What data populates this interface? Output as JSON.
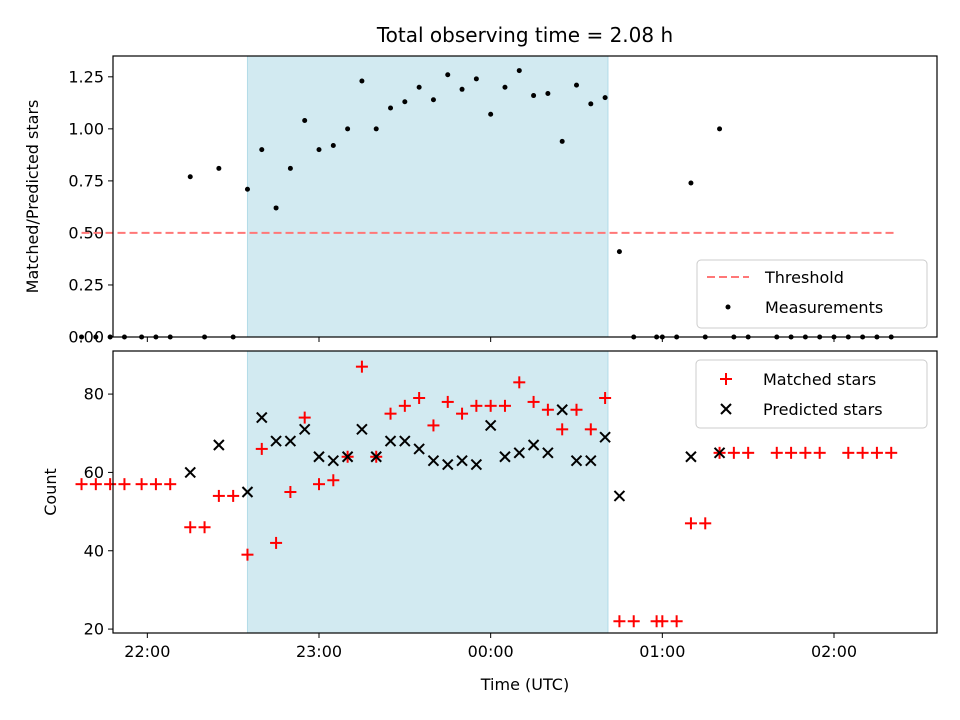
{
  "chart_data": [
    {
      "type": "scatter",
      "title": "Total observing time = 2.08 h",
      "xlabel": "",
      "ylabel": "Matched/Predicted stars",
      "xlim": [
        "21:48",
        "02:36"
      ],
      "ylim": [
        0,
        1.35
      ],
      "yticks": [
        "0.00",
        "0.25",
        "0.50",
        "0.75",
        "1.00",
        "1.25"
      ],
      "shaded_interval": {
        "start": "22:35",
        "end": "00:41",
        "color": "#add8e6"
      },
      "legend_position": "lower right",
      "threshold": {
        "name": "Threshold",
        "value": 0.5,
        "x_start": "21:37",
        "x_end": "02:21",
        "color": "#ff7777"
      },
      "series": [
        {
          "name": "Measurements",
          "color": "#000000",
          "points": [
            [
              "21:37",
              0
            ],
            [
              "21:42",
              0
            ],
            [
              "21:47",
              0
            ],
            [
              "21:52",
              0
            ],
            [
              "21:58",
              0
            ],
            [
              "22:03",
              0
            ],
            [
              "22:08",
              0
            ],
            [
              "22:15",
              0.77
            ],
            [
              "22:20",
              0
            ],
            [
              "22:25",
              0.81
            ],
            [
              "22:30",
              0
            ],
            [
              "22:35",
              0.71
            ],
            [
              "22:40",
              0.9
            ],
            [
              "22:45",
              0.62
            ],
            [
              "22:50",
              0.81
            ],
            [
              "22:55",
              1.04
            ],
            [
              "23:00",
              0.9
            ],
            [
              "23:05",
              0.92
            ],
            [
              "23:10",
              1.0
            ],
            [
              "23:15",
              1.23
            ],
            [
              "23:20",
              1.0
            ],
            [
              "23:25",
              1.1
            ],
            [
              "23:30",
              1.13
            ],
            [
              "23:35",
              1.2
            ],
            [
              "23:40",
              1.14
            ],
            [
              "23:45",
              1.26
            ],
            [
              "23:50",
              1.19
            ],
            [
              "23:55",
              1.24
            ],
            [
              "00:00",
              1.07
            ],
            [
              "00:05",
              1.2
            ],
            [
              "00:10",
              1.28
            ],
            [
              "00:15",
              1.16
            ],
            [
              "00:20",
              1.17
            ],
            [
              "00:25",
              0.94
            ],
            [
              "00:30",
              1.21
            ],
            [
              "00:35",
              1.12
            ],
            [
              "00:40",
              1.15
            ],
            [
              "00:45",
              0.41
            ],
            [
              "00:50",
              0
            ],
            [
              "00:58",
              0
            ],
            [
              "01:00",
              0
            ],
            [
              "01:05",
              0
            ],
            [
              "01:10",
              0.74
            ],
            [
              "01:15",
              0
            ],
            [
              "01:20",
              1.0
            ],
            [
              "01:25",
              0
            ],
            [
              "01:30",
              0
            ],
            [
              "01:40",
              0
            ],
            [
              "01:45",
              0
            ],
            [
              "01:50",
              0
            ],
            [
              "01:55",
              0
            ],
            [
              "02:00",
              0
            ],
            [
              "02:05",
              0
            ],
            [
              "02:10",
              0
            ],
            [
              "02:15",
              0
            ],
            [
              "02:20",
              0
            ]
          ]
        }
      ]
    },
    {
      "type": "scatter",
      "title": "",
      "xlabel": "Time (UTC)",
      "ylabel": "Count",
      "xlim": [
        "21:48",
        "02:36"
      ],
      "xticks": [
        "22:00",
        "23:00",
        "00:00",
        "01:00",
        "02:00"
      ],
      "ylim": [
        19,
        91
      ],
      "yticks": [
        "20",
        "40",
        "60",
        "80"
      ],
      "shaded_interval": {
        "start": "22:35",
        "end": "00:41",
        "color": "#add8e6"
      },
      "legend_position": "upper right",
      "series": [
        {
          "name": "Matched stars",
          "marker": "+",
          "color": "#ff0000",
          "points": [
            [
              "21:37",
              57
            ],
            [
              "21:42",
              57
            ],
            [
              "21:47",
              57
            ],
            [
              "21:52",
              57
            ],
            [
              "21:58",
              57
            ],
            [
              "22:03",
              57
            ],
            [
              "22:08",
              57
            ],
            [
              "22:15",
              46
            ],
            [
              "22:20",
              46
            ],
            [
              "22:25",
              54
            ],
            [
              "22:30",
              54
            ],
            [
              "22:35",
              39
            ],
            [
              "22:40",
              66
            ],
            [
              "22:45",
              42
            ],
            [
              "22:50",
              55
            ],
            [
              "22:55",
              74
            ],
            [
              "23:00",
              57
            ],
            [
              "23:05",
              58
            ],
            [
              "23:10",
              64
            ],
            [
              "23:15",
              87
            ],
            [
              "23:20",
              64
            ],
            [
              "23:25",
              75
            ],
            [
              "23:30",
              77
            ],
            [
              "23:35",
              79
            ],
            [
              "23:40",
              72
            ],
            [
              "23:45",
              78
            ],
            [
              "23:50",
              75
            ],
            [
              "23:55",
              77
            ],
            [
              "00:00",
              77
            ],
            [
              "00:05",
              77
            ],
            [
              "00:10",
              83
            ],
            [
              "00:15",
              78
            ],
            [
              "00:20",
              76
            ],
            [
              "00:25",
              71
            ],
            [
              "00:30",
              76
            ],
            [
              "00:35",
              71
            ],
            [
              "00:40",
              79
            ],
            [
              "00:45",
              22
            ],
            [
              "00:50",
              22
            ],
            [
              "00:58",
              22
            ],
            [
              "01:00",
              22
            ],
            [
              "01:05",
              22
            ],
            [
              "01:10",
              47
            ],
            [
              "01:15",
              47
            ],
            [
              "01:20",
              65
            ],
            [
              "01:25",
              65
            ],
            [
              "01:30",
              65
            ],
            [
              "01:40",
              65
            ],
            [
              "01:45",
              65
            ],
            [
              "01:50",
              65
            ],
            [
              "01:55",
              65
            ],
            [
              "02:05",
              65
            ],
            [
              "02:10",
              65
            ],
            [
              "02:15",
              65
            ],
            [
              "02:20",
              65
            ]
          ]
        },
        {
          "name": "Predicted stars",
          "marker": "x",
          "color": "#000000",
          "points": [
            [
              "22:15",
              60
            ],
            [
              "22:25",
              67
            ],
            [
              "22:35",
              55
            ],
            [
              "22:40",
              74
            ],
            [
              "22:45",
              68
            ],
            [
              "22:50",
              68
            ],
            [
              "22:55",
              71
            ],
            [
              "23:00",
              64
            ],
            [
              "23:05",
              63
            ],
            [
              "23:10",
              64
            ],
            [
              "23:15",
              71
            ],
            [
              "23:20",
              64
            ],
            [
              "23:25",
              68
            ],
            [
              "23:30",
              68
            ],
            [
              "23:35",
              66
            ],
            [
              "23:40",
              63
            ],
            [
              "23:45",
              62
            ],
            [
              "23:50",
              63
            ],
            [
              "23:55",
              62
            ],
            [
              "00:00",
              72
            ],
            [
              "00:05",
              64
            ],
            [
              "00:10",
              65
            ],
            [
              "00:15",
              67
            ],
            [
              "00:20",
              65
            ],
            [
              "00:25",
              76
            ],
            [
              "00:30",
              63
            ],
            [
              "00:35",
              63
            ],
            [
              "00:40",
              69
            ],
            [
              "00:45",
              54
            ],
            [
              "01:10",
              64
            ],
            [
              "01:20",
              65
            ]
          ]
        }
      ]
    }
  ]
}
